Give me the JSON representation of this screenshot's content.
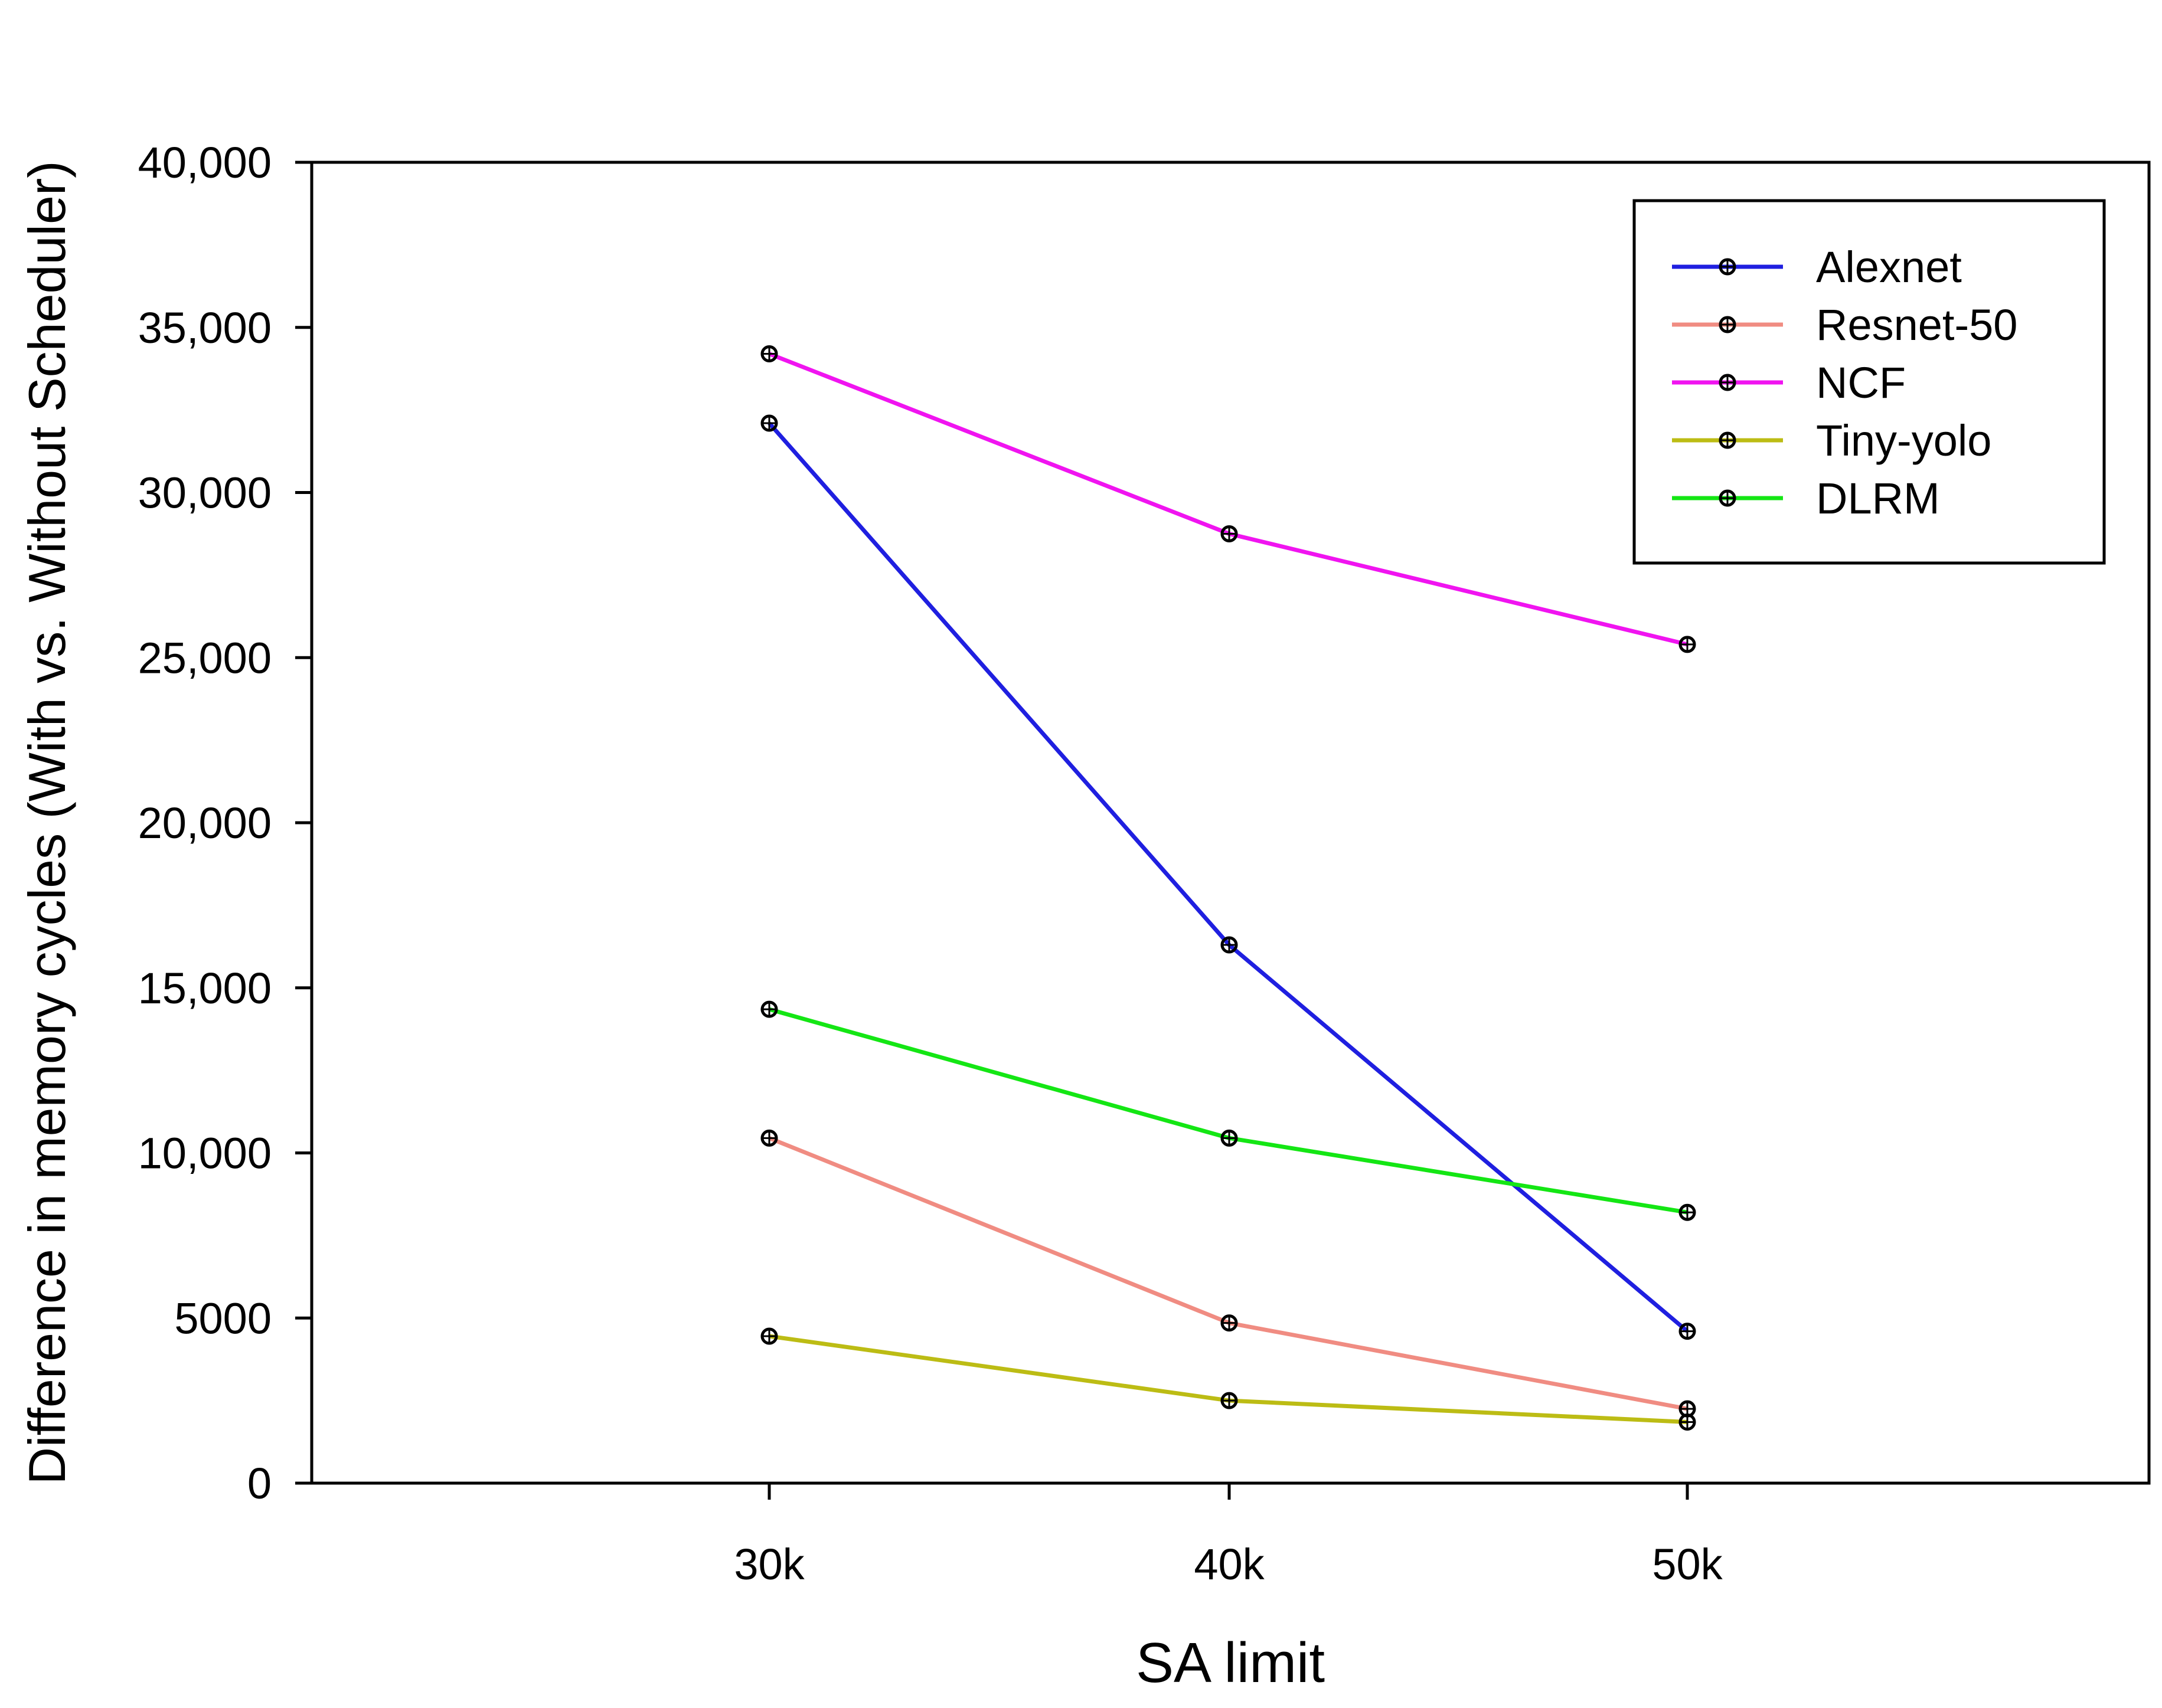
{
  "chart_data": {
    "type": "line",
    "title": "",
    "xlabel": "SA limit",
    "ylabel": "Difference in memory cycles (With vs. Without Scheduler)",
    "categories": [
      "30k",
      "40k",
      "50k"
    ],
    "ylim": [
      0,
      40000
    ],
    "yticks": [
      0,
      5000,
      10000,
      15000,
      20000,
      25000,
      30000,
      35000,
      40000
    ],
    "ytick_labels": [
      "0",
      "5000",
      "10,000",
      "15,000",
      "20,000",
      "25,000",
      "30,000",
      "35,000",
      "40,000"
    ],
    "grid": false,
    "legend_position": "top-right",
    "series": [
      {
        "name": "Alexnet",
        "color": "#1f1fe0",
        "values": [
          32100,
          16300,
          4600
        ]
      },
      {
        "name": "Resnet-50",
        "color": "#f08c82",
        "values": [
          10450,
          4850,
          2250
        ]
      },
      {
        "name": "NCF",
        "color": "#f014f0",
        "values": [
          34200,
          28750,
          25400
        ]
      },
      {
        "name": "Tiny-yolo",
        "color": "#bcbc14",
        "values": [
          4450,
          2500,
          1850
        ]
      },
      {
        "name": "DLRM",
        "color": "#14e614",
        "values": [
          14350,
          10450,
          8200
        ]
      }
    ]
  }
}
